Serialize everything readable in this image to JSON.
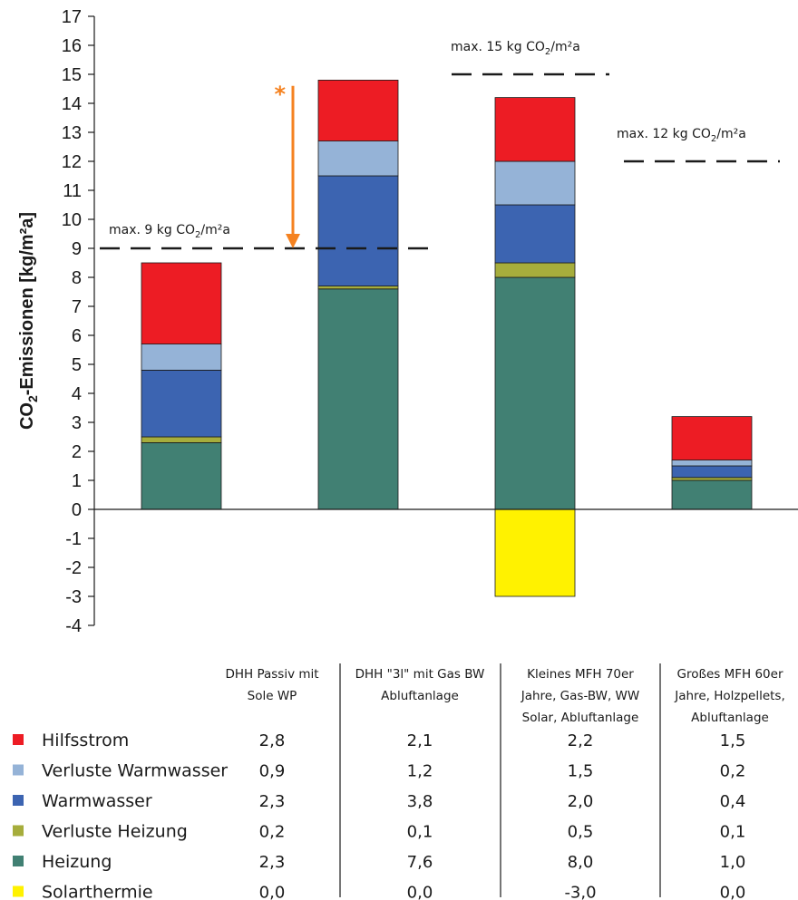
{
  "chart_data": {
    "type": "bar",
    "stacked": true,
    "ylabel": "CO₂-Emissionen [kg/m²a]",
    "ylim": [
      -4,
      17
    ],
    "yticks": [
      17,
      16,
      15,
      14,
      13,
      12,
      11,
      10,
      9,
      8,
      7,
      6,
      5,
      4,
      3,
      2,
      1,
      0,
      -1,
      -2,
      -3,
      -4
    ],
    "categories": [
      [
        "DHH Passiv mit",
        "Sole WP"
      ],
      [
        "DHH \"3l\" mit Gas BW",
        "Abluftanlage"
      ],
      [
        "Kleines MFH 70er",
        "Jahre, Gas-BW, WW",
        "Solar, Abluftanlage"
      ],
      [
        "Großes MFH 60er",
        "Jahre, Holzpellets,",
        "Abluftanlage"
      ]
    ],
    "series": [
      {
        "name": "Hilfsstrom",
        "color": "#ed1c24",
        "values": [
          2.8,
          2.1,
          2.2,
          1.5
        ],
        "labels": [
          "2,8",
          "2,1",
          "2,2",
          "1,5"
        ]
      },
      {
        "name": "Verluste Warmwasser",
        "color": "#95b3d7",
        "values": [
          0.9,
          1.2,
          1.5,
          0.2
        ],
        "labels": [
          "0,9",
          "1,2",
          "1,5",
          "0,2"
        ]
      },
      {
        "name": "Warmwasser",
        "color": "#3c64b1",
        "values": [
          2.3,
          3.8,
          2.0,
          0.4
        ],
        "labels": [
          "2,3",
          "3,8",
          "2,0",
          "0,4"
        ]
      },
      {
        "name": "Verluste Heizung",
        "color": "#a6ad3c",
        "values": [
          0.2,
          0.1,
          0.5,
          0.1
        ],
        "labels": [
          "0,2",
          "0,1",
          "0,5",
          "0,1"
        ]
      },
      {
        "name": "Heizung",
        "color": "#418073",
        "values": [
          2.3,
          7.6,
          8.0,
          1.0
        ],
        "labels": [
          "2,3",
          "7,6",
          "8,0",
          "1,0"
        ]
      },
      {
        "name": "Solarthermie",
        "color": "#fff200",
        "values": [
          0.0,
          0.0,
          -3.0,
          0.0
        ],
        "labels": [
          "0,0",
          "0,0",
          "-3,0",
          "0,0"
        ]
      }
    ],
    "limits": [
      {
        "value": 9,
        "text": "max. 9 kg CO",
        "sub": "2",
        "suffix": "/m²a"
      },
      {
        "value": 15,
        "text": "max. 15 kg CO",
        "sub": "2",
        "suffix": "/m²a"
      },
      {
        "value": 12,
        "text": "max. 12 kg CO",
        "sub": "2",
        "suffix": "/m²a"
      }
    ],
    "annotation": {
      "text": "*",
      "from": 14.6,
      "to": 9,
      "color": "#f58220"
    }
  }
}
